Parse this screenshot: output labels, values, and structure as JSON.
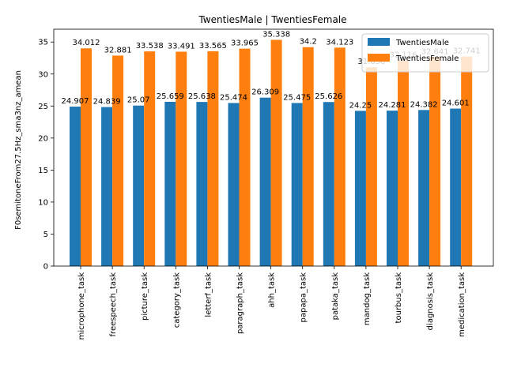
{
  "chart_data": {
    "type": "bar",
    "title": "TwentiesMale | TwentiesFemale",
    "xlabel": "",
    "ylabel": "F0semitoneFrom27.5Hz_sma3nz_amean",
    "ylim": [
      0,
      37
    ],
    "yticks": [
      0,
      5,
      10,
      15,
      20,
      25,
      30,
      35
    ],
    "grid": false,
    "legend_position": "top-right",
    "categories": [
      "microphone_task",
      "freespeech_task",
      "picture_task",
      "category_task",
      "letterf_task",
      "paragraph_task",
      "ahh_task",
      "papapa_task",
      "pataka_task",
      "mandog_task",
      "tourbus_task",
      "diagnosis_task",
      "medication_task"
    ],
    "series": [
      {
        "name": "TwentiesMale",
        "color": "#1f77b4",
        "values": [
          24.907,
          24.839,
          25.07,
          25.659,
          25.638,
          25.474,
          26.309,
          25.475,
          25.626,
          24.25,
          24.281,
          24.382,
          24.601
        ],
        "labels": [
          "24.907",
          "24.839",
          "25.07",
          "25.659",
          "25.638",
          "25.474",
          "26.309",
          "25.475",
          "25.626",
          "24.25",
          "24.281",
          "24.382",
          "24.601"
        ]
      },
      {
        "name": "TwentiesFemale",
        "color": "#ff7f0e",
        "values": [
          34.012,
          32.881,
          33.538,
          33.491,
          33.565,
          33.965,
          35.338,
          34.2,
          34.123,
          31.056,
          32.116,
          32.641,
          32.741
        ],
        "labels": [
          "34.012",
          "32.881",
          "33.538",
          "33.491",
          "33.565",
          "33.965",
          "35.338",
          "34.2",
          "34.123",
          "31.056",
          "32.116",
          "32.641",
          "32.741"
        ]
      }
    ]
  }
}
